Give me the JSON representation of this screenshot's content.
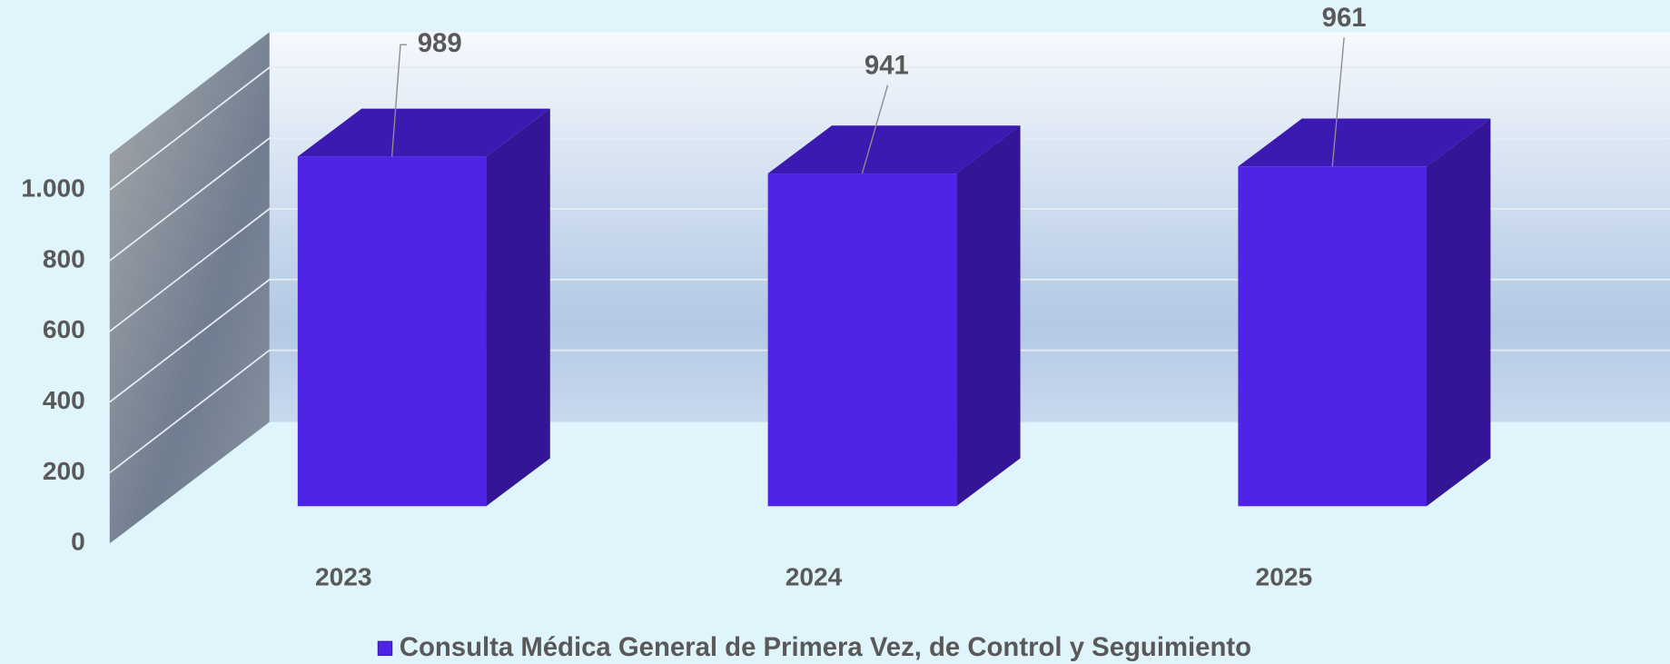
{
  "chart_data": {
    "type": "bar3d",
    "categories": [
      "2023",
      "2024",
      "2025"
    ],
    "series": [
      {
        "name": "Consulta Médica General de Primera Vez, de Control y Seguimiento",
        "color": "#4f24e6",
        "values": [
          989,
          941,
          961
        ]
      }
    ],
    "ylim": [
      0,
      1100
    ],
    "yticks": [
      0,
      200,
      400,
      600,
      800,
      {
        "value": 1000,
        "label": "1.000"
      }
    ],
    "grid": true,
    "legend": "bottom"
  }
}
